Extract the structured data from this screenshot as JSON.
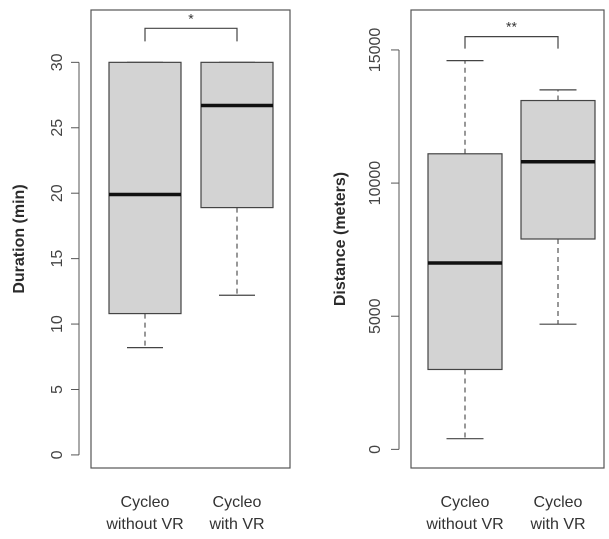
{
  "chart_data": [
    {
      "type": "box",
      "ylabel": "Duration (min)",
      "ylim": [
        -1,
        34
      ],
      "yticks": [
        0,
        5,
        10,
        15,
        20,
        25,
        30
      ],
      "categories": [
        {
          "line1": "Cycleo",
          "line2": "without VR"
        },
        {
          "line1": "Cycleo",
          "line2": "with VR"
        }
      ],
      "boxes": [
        {
          "whisker_low": 8.2,
          "q1": 10.8,
          "median": 19.9,
          "q3": 30,
          "whisker_high": 30
        },
        {
          "whisker_low": 12.2,
          "q1": 18.9,
          "median": 26.7,
          "q3": 30,
          "whisker_high": 30
        }
      ],
      "significance": {
        "label": "*",
        "y": 32.6,
        "drop": 1
      }
    },
    {
      "type": "box",
      "ylabel": "Distance (meters)",
      "ylim": [
        -700,
        16500
      ],
      "yticks": [
        0,
        5000,
        10000,
        15000
      ],
      "categories": [
        {
          "line1": "Cycleo",
          "line2": "without VR"
        },
        {
          "line1": "Cycleo",
          "line2": "with VR"
        }
      ],
      "boxes": [
        {
          "whisker_low": 400,
          "q1": 3000,
          "median": 7000,
          "q3": 11100,
          "whisker_high": 14600
        },
        {
          "whisker_low": 4700,
          "q1": 7900,
          "median": 10800,
          "q3": 13100,
          "whisker_high": 13500
        }
      ],
      "significance": {
        "label": "**",
        "y": 15500,
        "drop": 450
      }
    }
  ],
  "colors": {
    "box_fill": "#d3d3d3",
    "box_stroke": "#444444",
    "median": "#111111",
    "whisker": "#444444",
    "frame": "#555555"
  }
}
